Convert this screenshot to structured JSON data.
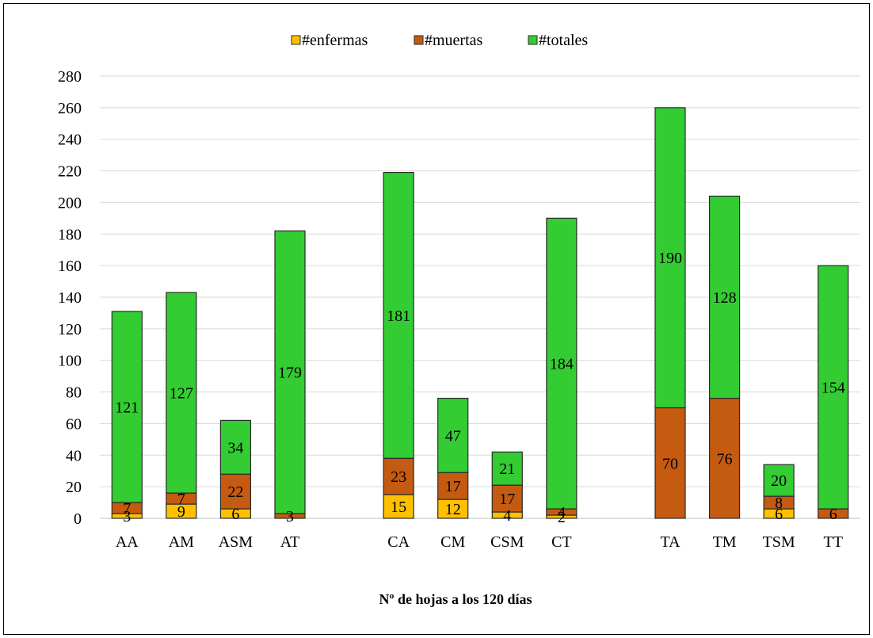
{
  "chart_data": {
    "type": "bar",
    "stacked": true,
    "categories": [
      "AA",
      "AM",
      "ASM",
      "AT",
      "",
      "CA",
      "CM",
      "CSM",
      "CT",
      "",
      "TA",
      "TM",
      "TSM",
      "TT"
    ],
    "series": [
      {
        "name": "#enfermas",
        "color": "#ffc000",
        "values": [
          3,
          9,
          6,
          0,
          null,
          15,
          12,
          4,
          2,
          null,
          0,
          0,
          6,
          0
        ],
        "labels": [
          "3",
          "9",
          "6",
          "",
          "",
          "15",
          "12",
          "4",
          "2",
          "",
          "",
          "",
          "6",
          ""
        ]
      },
      {
        "name": "#muertas",
        "color": "#c55a11",
        "values": [
          7,
          7,
          22,
          3,
          null,
          23,
          17,
          17,
          4,
          null,
          70,
          76,
          8,
          6
        ],
        "labels": [
          "7",
          "7",
          "22",
          "3",
          "",
          "23",
          "17",
          "17",
          "4",
          "",
          "70",
          "76",
          "8",
          "6"
        ]
      },
      {
        "name": "#totales",
        "color": "#33cc33",
        "values": [
          121,
          127,
          34,
          179,
          null,
          181,
          47,
          21,
          184,
          null,
          190,
          128,
          20,
          154
        ],
        "labels": [
          "121",
          "127",
          "34",
          "179",
          "",
          "181",
          "47",
          "21",
          "184",
          "",
          "190",
          "128",
          "20",
          "154"
        ]
      }
    ],
    "ylim": [
      0,
      280
    ],
    "yticks": [
      0,
      20,
      40,
      60,
      80,
      100,
      120,
      140,
      160,
      180,
      200,
      220,
      240,
      260,
      280
    ],
    "xlabel": "Nº de hojas a los 120 días",
    "ylabel": "",
    "grid": true,
    "legend_position": "top"
  }
}
